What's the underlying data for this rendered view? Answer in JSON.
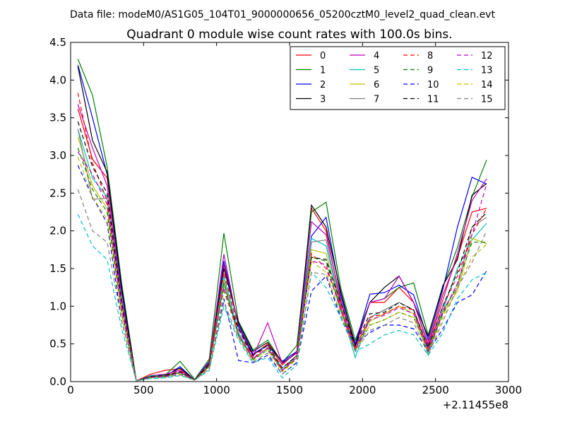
{
  "chart_data": {
    "type": "line",
    "suptitle": "Data file: modeM0/AS1G05_104T01_9000000656_05200cztM0_level2_quad_clean.evt",
    "title": "Quadrant 0 module wise count rates with 100.0s bins.",
    "xlabel": "",
    "ylabel": "",
    "x_offset_label": "+2.11455e8",
    "xlim": [
      0,
      3000
    ],
    "ylim": [
      0,
      4.5
    ],
    "xticks": [
      0,
      500,
      1000,
      1500,
      2000,
      2500,
      3000
    ],
    "xtick_labels": [
      "0",
      "500",
      "1000",
      "1500",
      "2000",
      "2500",
      "3000"
    ],
    "yticks": [
      0,
      0.5,
      1,
      1.5,
      2,
      2.5,
      3,
      3.5,
      4,
      4.5
    ],
    "ytick_labels": [
      "0.0",
      "0.5",
      "1.0",
      "1.5",
      "2.0",
      "2.5",
      "3.0",
      "3.5",
      "4.0",
      "4.5"
    ],
    "legend_position": "top-right",
    "legend_columns": 4,
    "x": [
      50,
      150,
      250,
      350,
      450,
      550,
      650,
      750,
      850,
      950,
      1050,
      1150,
      1250,
      1350,
      1450,
      1550,
      1650,
      1750,
      1850,
      1950,
      2050,
      2150,
      2250,
      2350,
      2450,
      2550,
      2650,
      2750,
      2850
    ],
    "series": [
      {
        "name": "0",
        "color": "#ff0000",
        "dash": "solid",
        "values": [
          3.62,
          2.95,
          2.7,
          1.2,
          0.01,
          0.1,
          0.15,
          0.17,
          0.02,
          0.27,
          1.55,
          0.75,
          0.35,
          0.5,
          0.22,
          0.4,
          2.3,
          2.0,
          1.05,
          0.5,
          1.05,
          1.05,
          1.25,
          1.05,
          0.5,
          1.15,
          1.65,
          2.25,
          2.3
        ]
      },
      {
        "name": "1",
        "color": "#008000",
        "dash": "solid",
        "values": [
          4.28,
          3.8,
          2.85,
          1.3,
          0.01,
          0.07,
          0.09,
          0.27,
          0.03,
          0.3,
          1.97,
          0.8,
          0.42,
          0.55,
          0.25,
          0.48,
          2.25,
          2.38,
          1.25,
          0.55,
          1.05,
          1.1,
          1.25,
          1.31,
          0.62,
          1.25,
          1.78,
          2.45,
          2.94
        ]
      },
      {
        "name": "2",
        "color": "#0000ff",
        "dash": "solid",
        "values": [
          4.2,
          3.5,
          2.75,
          1.2,
          0.01,
          0.06,
          0.07,
          0.2,
          0.02,
          0.27,
          1.6,
          0.75,
          0.37,
          0.48,
          0.27,
          0.4,
          1.93,
          2.18,
          1.15,
          0.5,
          1.16,
          1.18,
          1.28,
          1.15,
          0.55,
          1.22,
          2.05,
          2.71,
          2.62
        ]
      },
      {
        "name": "3",
        "color": "#000000",
        "dash": "solid",
        "values": [
          4.18,
          3.2,
          2.78,
          1.25,
          0.01,
          0.08,
          0.08,
          0.18,
          0.02,
          0.25,
          1.5,
          0.78,
          0.4,
          0.52,
          0.25,
          0.38,
          2.34,
          2.05,
          1.2,
          0.48,
          1.05,
          1.25,
          1.4,
          1.05,
          0.6,
          1.27,
          1.62,
          2.47,
          2.63
        ]
      },
      {
        "name": "4",
        "color": "#bf00bf",
        "dash": "solid",
        "values": [
          3.68,
          3.1,
          2.6,
          1.1,
          0.01,
          0.08,
          0.1,
          0.15,
          0.02,
          0.25,
          1.69,
          0.72,
          0.33,
          0.78,
          0.24,
          0.38,
          2.12,
          1.95,
          1.1,
          0.45,
          1.05,
          1.1,
          1.4,
          1.05,
          0.48,
          1.08,
          1.7,
          2.4,
          2.69
        ]
      },
      {
        "name": "5",
        "color": "#00bfbf",
        "dash": "solid",
        "values": [
          3.35,
          2.7,
          2.45,
          1.05,
          0.01,
          0.08,
          0.08,
          0.12,
          0.02,
          0.22,
          1.4,
          0.65,
          0.3,
          0.45,
          0.18,
          0.35,
          1.9,
          1.8,
          0.98,
          0.32,
          0.85,
          0.95,
          1.05,
          0.95,
          0.35,
          0.95,
          1.5,
          1.88,
          2.1
        ]
      },
      {
        "name": "6",
        "color": "#bfbf00",
        "dash": "solid",
        "values": [
          3.25,
          2.6,
          2.3,
          1.0,
          0.01,
          0.06,
          0.07,
          0.12,
          0.02,
          0.2,
          1.35,
          0.6,
          0.3,
          0.45,
          0.15,
          0.32,
          1.75,
          1.7,
          0.95,
          0.45,
          0.8,
          0.9,
          1.0,
          0.9,
          0.4,
          0.9,
          1.2,
          1.9,
          1.83
        ]
      },
      {
        "name": "7",
        "color": "#808080",
        "dash": "solid",
        "values": [
          3.35,
          2.42,
          2.43,
          1.05,
          0.01,
          0.06,
          0.07,
          0.12,
          0.02,
          0.22,
          1.32,
          0.6,
          0.31,
          0.44,
          0.15,
          0.32,
          1.85,
          1.88,
          1.0,
          0.45,
          0.85,
          0.95,
          1.05,
          0.95,
          0.42,
          0.95,
          1.25,
          2.05,
          2.18
        ]
      },
      {
        "name": "8",
        "color": "#ff0000",
        "dash": "dashed",
        "values": [
          3.83,
          2.9,
          2.4,
          0.95,
          0.01,
          0.07,
          0.08,
          0.14,
          0.02,
          0.24,
          1.45,
          0.7,
          0.3,
          0.5,
          0.15,
          0.35,
          1.7,
          1.5,
          1.0,
          0.45,
          0.85,
          0.9,
          1.0,
          0.95,
          0.45,
          1.0,
          1.4,
          1.95,
          2.3
        ]
      },
      {
        "name": "9",
        "color": "#008000",
        "dash": "dashed",
        "values": [
          3.1,
          2.55,
          2.25,
          0.9,
          0.01,
          0.06,
          0.07,
          0.12,
          0.02,
          0.21,
          1.3,
          0.62,
          0.29,
          0.42,
          0.14,
          0.31,
          1.65,
          1.6,
          0.95,
          0.42,
          0.75,
          0.82,
          0.92,
          0.85,
          0.4,
          0.9,
          1.3,
          1.85,
          1.85
        ]
      },
      {
        "name": "10",
        "color": "#0000ff",
        "dash": "dashed",
        "values": [
          2.87,
          2.45,
          2.1,
          0.8,
          0.01,
          0.05,
          0.06,
          0.1,
          0.02,
          0.17,
          1.1,
          0.28,
          0.25,
          0.35,
          0.1,
          0.25,
          1.2,
          1.4,
          0.85,
          0.5,
          0.65,
          0.75,
          0.75,
          0.7,
          0.4,
          0.7,
          1.05,
          1.15,
          1.47
        ]
      },
      {
        "name": "11",
        "color": "#000000",
        "dash": "dashed",
        "values": [
          3.45,
          2.85,
          2.5,
          1.05,
          0.01,
          0.07,
          0.08,
          0.13,
          0.02,
          0.23,
          1.2,
          0.7,
          0.35,
          0.48,
          0.18,
          0.34,
          1.65,
          1.62,
          1.05,
          0.48,
          0.9,
          0.92,
          1.05,
          0.95,
          0.45,
          1.0,
          1.45,
          2.05,
          2.24
        ]
      },
      {
        "name": "12",
        "color": "#bf00bf",
        "dash": "dashed",
        "values": [
          3.05,
          2.75,
          2.35,
          1.0,
          0.01,
          0.06,
          0.07,
          0.12,
          0.02,
          0.2,
          1.25,
          0.62,
          0.3,
          0.45,
          0.15,
          0.32,
          1.6,
          1.55,
          0.95,
          0.42,
          0.82,
          0.88,
          0.98,
          0.9,
          0.4,
          0.92,
          1.3,
          1.95,
          2.62
        ]
      },
      {
        "name": "13",
        "color": "#00bfbf",
        "dash": "dashed",
        "values": [
          2.22,
          1.8,
          1.62,
          0.7,
          0.01,
          0.04,
          0.05,
          0.08,
          0.02,
          0.15,
          1.0,
          0.55,
          0.25,
          0.32,
          0.05,
          0.22,
          1.45,
          1.25,
          0.85,
          0.4,
          0.5,
          0.62,
          0.68,
          0.62,
          0.35,
          0.65,
          1.1,
          1.35,
          1.45
        ]
      },
      {
        "name": "14",
        "color": "#bfbf00",
        "dash": "dashed",
        "values": [
          2.98,
          2.45,
          2.15,
          0.9,
          0.01,
          0.05,
          0.06,
          0.1,
          0.02,
          0.19,
          1.2,
          0.6,
          0.28,
          0.42,
          0.13,
          0.3,
          1.6,
          1.45,
          0.9,
          0.4,
          0.75,
          0.82,
          0.92,
          0.85,
          0.38,
          0.85,
          1.25,
          1.65,
          1.82
        ]
      },
      {
        "name": "15",
        "color": "#808080",
        "dash": "dashed",
        "values": [
          2.55,
          2.0,
          1.85,
          0.8,
          0.01,
          0.05,
          0.06,
          0.09,
          0.02,
          0.17,
          1.05,
          0.58,
          0.26,
          0.38,
          0.1,
          0.26,
          1.45,
          1.42,
          0.88,
          0.4,
          0.68,
          0.75,
          0.85,
          0.78,
          0.36,
          0.8,
          1.25,
          1.58,
          2.0
        ]
      }
    ]
  }
}
